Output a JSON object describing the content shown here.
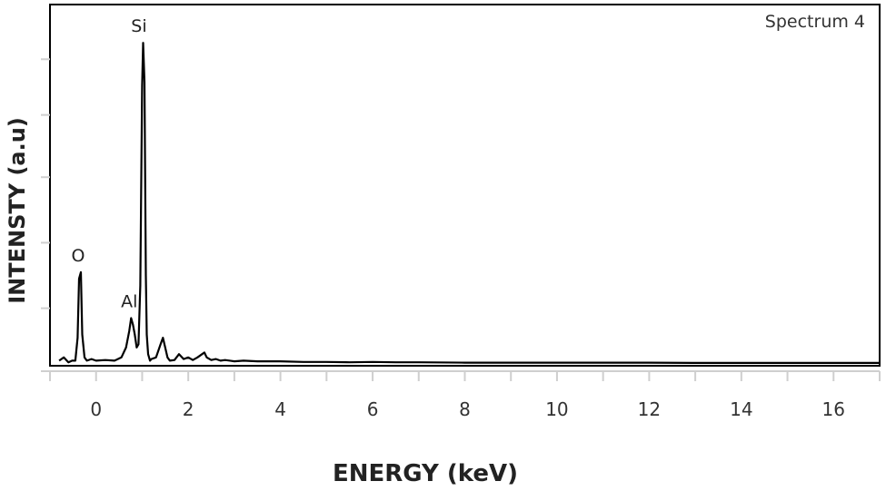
{
  "chart_data": {
    "type": "line",
    "spectrum_label": "Spectrum 4",
    "xlabel": "ENERGY (keV)",
    "ylabel": "INTENSTY (a.u)",
    "xlim": [
      -1,
      17
    ],
    "ylim": [
      0,
      1
    ],
    "x_ticks": [
      0,
      2,
      4,
      6,
      8,
      10,
      12,
      14,
      16
    ],
    "x_tick_labels": [
      "0",
      "2",
      "4",
      "6",
      "8",
      "10",
      "12",
      "14",
      "16"
    ],
    "y_tick_labels_shown": false,
    "grid": false,
    "series": [
      {
        "x": [
          -0.8,
          -0.7,
          -0.6,
          -0.52,
          -0.45,
          -0.4,
          -0.37,
          -0.33,
          -0.3,
          -0.25,
          -0.2,
          -0.1,
          0.0,
          0.2,
          0.4,
          0.55,
          0.65,
          0.72,
          0.76,
          0.8,
          0.84,
          0.88,
          0.92,
          0.96,
          1.0,
          1.02,
          1.05,
          1.08,
          1.1,
          1.13,
          1.17,
          1.2,
          1.3,
          1.4,
          1.45,
          1.5,
          1.55,
          1.6,
          1.7,
          1.8,
          1.9,
          2.0,
          2.1,
          2.2,
          2.3,
          2.35,
          2.4,
          2.5,
          2.6,
          2.7,
          2.8,
          3.0,
          3.2,
          3.5,
          4.0,
          4.5,
          5.0,
          5.5,
          6.0,
          6.5,
          7.0,
          8.0,
          9.0,
          10.0,
          11.0,
          12.0,
          13.0,
          14.0,
          15.0,
          16.0,
          17.0
        ],
        "y": [
          0.01,
          0.02,
          0.005,
          0.01,
          0.01,
          0.08,
          0.26,
          0.28,
          0.09,
          0.02,
          0.01,
          0.015,
          0.01,
          0.012,
          0.01,
          0.02,
          0.05,
          0.1,
          0.14,
          0.12,
          0.09,
          0.05,
          0.06,
          0.24,
          0.85,
          0.98,
          0.86,
          0.27,
          0.09,
          0.03,
          0.01,
          0.015,
          0.02,
          0.06,
          0.08,
          0.05,
          0.02,
          0.01,
          0.012,
          0.03,
          0.015,
          0.02,
          0.012,
          0.02,
          0.03,
          0.035,
          0.02,
          0.012,
          0.015,
          0.01,
          0.012,
          0.008,
          0.01,
          0.008,
          0.008,
          0.006,
          0.006,
          0.005,
          0.006,
          0.005,
          0.005,
          0.004,
          0.004,
          0.004,
          0.004,
          0.004,
          0.003,
          0.003,
          0.003,
          0.003,
          0.003
        ]
      }
    ],
    "peak_labels": [
      {
        "label": "O",
        "x": -0.35,
        "y": 0.28
      },
      {
        "label": "Al",
        "x": 0.76,
        "y": 0.14
      },
      {
        "label": "Si",
        "x": 1.05,
        "y": 0.98
      }
    ]
  }
}
